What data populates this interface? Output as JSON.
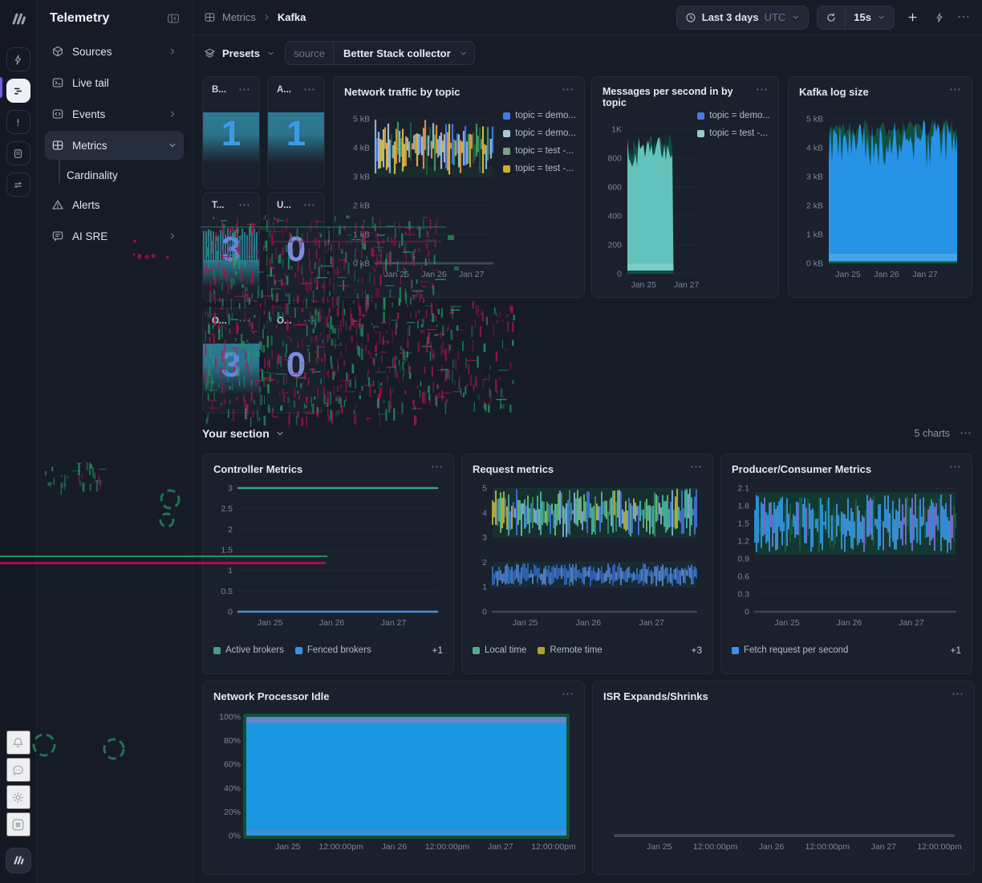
{
  "icons": {
    "more": "⋯"
  },
  "rail": {
    "top": [
      "betterstack-logo",
      "uptime",
      "telemetry",
      "incidents",
      "status-pages",
      "workflows"
    ],
    "bottom": [
      "notifications",
      "feedback",
      "theme",
      "quick-actions",
      "account"
    ]
  },
  "sidebar": {
    "title": "Telemetry",
    "items": [
      {
        "label": "Sources"
      },
      {
        "label": "Live tail"
      },
      {
        "label": "Events"
      },
      {
        "label": "Metrics"
      },
      {
        "label": "Cardinality"
      },
      {
        "label": "Alerts"
      },
      {
        "label": "AI SRE"
      }
    ]
  },
  "topbar": {
    "breadcrumb_parent": "Metrics",
    "breadcrumb_current": "Kafka",
    "time_range_label": "Last 3 days",
    "timezone_label": "UTC",
    "refresh_interval_label": "15s"
  },
  "presets": {
    "button_label": "Presets",
    "source_key": "source",
    "source_value": "Better Stack collector"
  },
  "section": {
    "title": "Your section",
    "count_label": "5 charts"
  },
  "stat_cards": [
    {
      "title": "B...",
      "value": "1",
      "spark": "block",
      "value_color": "#3e9ae8"
    },
    {
      "title": "A...",
      "value": "1",
      "spark": "block",
      "value_color": "#3e9ae8"
    },
    {
      "title": "T...",
      "value": "3",
      "spark": "bars",
      "value_color": "#5f86e0"
    },
    {
      "title": "U...",
      "value": "0",
      "spark": "none",
      "value_color": "#7d8be2"
    },
    {
      "title": "O...",
      "value": "3",
      "spark": "block",
      "value_color": "#5f86e0"
    },
    {
      "title": "O...",
      "value": "0",
      "spark": "none",
      "value_color": "#7d8be2"
    }
  ],
  "chart_data": [
    {
      "id": "network-traffic",
      "type": "area",
      "title": "Network traffic by topic",
      "ylim": [
        0,
        5
      ],
      "yticks": [
        {
          "label": "0 kB",
          "v": 0
        },
        {
          "label": "1 kB",
          "v": 1
        },
        {
          "label": "2 kB",
          "v": 2
        },
        {
          "label": "3 kB",
          "v": 3
        },
        {
          "label": "4 kB",
          "v": 4
        },
        {
          "label": "5 kB",
          "v": 5
        }
      ],
      "xticks": [
        {
          "label": "Jan 25",
          "f": 0.18
        },
        {
          "label": "Jan 26",
          "f": 0.5
        },
        {
          "label": "Jan 27",
          "f": 0.82
        }
      ],
      "legend": {
        "position": "right",
        "items": [
          {
            "label": "topic = demo...",
            "color": "#4878ea"
          },
          {
            "label": "topic = demo...",
            "color": "#a9c6da"
          },
          {
            "label": "topic = test -...",
            "color": "#7aa28b"
          },
          {
            "label": "topic = test -...",
            "color": "#d0b02c"
          }
        ]
      },
      "series": [
        {
          "kind": "bandrect",
          "lo": 3.0,
          "hi": 3.35,
          "color": "#17352b",
          "opacity": 0.6
        },
        {
          "kind": "vnoise",
          "seed": 7,
          "lo": 3.05,
          "hi": 4.98,
          "step": 2,
          "sw": 2.2,
          "colors": [
            "#e59a3a",
            "#ddc13e",
            "#e59a3a",
            "#3f9e5f",
            "#4878ea",
            "#a9c6da",
            "#1a5c44",
            "#ddc13e",
            "#e59a3a",
            "#8fb9e8"
          ]
        }
      ]
    },
    {
      "id": "messages-in",
      "type": "area",
      "title": "Messages per second in by topic",
      "ylim": [
        0,
        1000
      ],
      "yticks": [
        {
          "label": "0",
          "v": 0
        },
        {
          "label": "200",
          "v": 200
        },
        {
          "label": "400",
          "v": 400
        },
        {
          "label": "600",
          "v": 600
        },
        {
          "label": "800",
          "v": 800
        },
        {
          "label": "1K",
          "v": 1000
        }
      ],
      "xticks": [
        {
          "label": "Jan 25",
          "f": 0.22
        },
        {
          "label": "Jan 27",
          "f": 0.8
        }
      ],
      "legend": {
        "position": "right",
        "items": [
          {
            "label": "topic = demo...",
            "color": "#4878ea"
          },
          {
            "label": "topic = test -...",
            "color": "#9ec7cc"
          }
        ]
      },
      "series": [
        {
          "kind": "area",
          "seed": 3,
          "color": "#0f4f42",
          "topLo": 780,
          "topHi": 985,
          "x1": 0.625,
          "step": 2
        },
        {
          "kind": "area",
          "seed": 4,
          "color": "#64c2bc",
          "topLo": 720,
          "topHi": 950,
          "x1": 0.625,
          "step": 2
        },
        {
          "kind": "bandrect",
          "lo": 0,
          "hi": 70,
          "color": "#93d6d1",
          "opacity": 0.5,
          "x1": 0.625
        },
        {
          "kind": "bandrect",
          "lo": 0,
          "hi": 22,
          "color": "#0f4f42",
          "opacity": 1,
          "x1": 0.625
        }
      ]
    },
    {
      "id": "kafka-log-size",
      "type": "area",
      "title": "Kafka log size",
      "ylim": [
        0,
        5
      ],
      "yticks": [
        {
          "label": "0 kB",
          "v": 0
        },
        {
          "label": "1 kB",
          "v": 1
        },
        {
          "label": "2 kB",
          "v": 2
        },
        {
          "label": "3 kB",
          "v": 3
        },
        {
          "label": "4 kB",
          "v": 4
        },
        {
          "label": "5 kB",
          "v": 5
        }
      ],
      "xticks": [
        {
          "label": "Jan 25",
          "f": 0.15
        },
        {
          "label": "Jan 26",
          "f": 0.45
        },
        {
          "label": "Jan 27",
          "f": 0.75
        }
      ],
      "legend": null,
      "series": [
        {
          "kind": "area",
          "seed": 8,
          "color": "#124f3f",
          "topLo": 4.35,
          "topHi": 5.0,
          "step": 3
        },
        {
          "kind": "area",
          "seed": 9,
          "color": "#2693e6",
          "topLo": 3.25,
          "topHi": 5.0,
          "step": 2
        },
        {
          "kind": "bandrect",
          "lo": 0,
          "hi": 0.33,
          "color": "#66b6ee",
          "opacity": 0.5
        },
        {
          "kind": "bandrect",
          "lo": 0,
          "hi": 0.07,
          "color": "#0f5f3f",
          "opacity": 1
        }
      ]
    },
    {
      "id": "controller-metrics",
      "type": "line",
      "title": "Controller Metrics",
      "ylim": [
        0,
        3
      ],
      "yticks": [
        {
          "label": "0",
          "v": 0
        },
        {
          "label": "0.5",
          "v": 0.5
        },
        {
          "label": "1",
          "v": 1
        },
        {
          "label": "1.5",
          "v": 1.5
        },
        {
          "label": "2",
          "v": 2
        },
        {
          "label": "2.5",
          "v": 2.5
        },
        {
          "label": "3",
          "v": 3
        }
      ],
      "xticks": [
        {
          "label": "Jan 25",
          "f": 0.16
        },
        {
          "label": "Jan 26",
          "f": 0.47
        },
        {
          "label": "Jan 27",
          "f": 0.78
        }
      ],
      "legend": {
        "position": "bottom",
        "overflow": "+1",
        "items": [
          {
            "label": "Active brokers",
            "color": "#4d9b82"
          },
          {
            "label": "Fenced brokers",
            "color": "#3f8fe0"
          }
        ]
      },
      "series": [
        {
          "kind": "flat",
          "v": 3,
          "color": "#3fa287",
          "sw": 2.4
        },
        {
          "kind": "flat",
          "v": 0,
          "color": "#3f8fe0",
          "sw": 2.6
        }
      ]
    },
    {
      "id": "request-metrics",
      "type": "line",
      "title": "Request metrics",
      "ylim": [
        0,
        5
      ],
      "yticks": [
        {
          "label": "0",
          "v": 0
        },
        {
          "label": "1",
          "v": 1
        },
        {
          "label": "2",
          "v": 2
        },
        {
          "label": "3",
          "v": 3
        },
        {
          "label": "4",
          "v": 4
        },
        {
          "label": "5",
          "v": 5
        }
      ],
      "xticks": [
        {
          "label": "Jan 25",
          "f": 0.16
        },
        {
          "label": "Jan 26",
          "f": 0.47
        },
        {
          "label": "Jan 27",
          "f": 0.78
        }
      ],
      "legend": {
        "position": "bottom",
        "overflow": "+3",
        "items": [
          {
            "label": "Local time",
            "color": "#5aa88f"
          },
          {
            "label": "Remote time",
            "color": "#b89f2c"
          }
        ]
      },
      "series": [
        {
          "kind": "bandrect",
          "lo": 3.0,
          "hi": 5.0,
          "color": "#123f33",
          "opacity": 0.5
        },
        {
          "kind": "vnoise",
          "seed": 11,
          "lo": 3.02,
          "hi": 4.98,
          "step": 2,
          "sw": 1.8,
          "colors": [
            "#4fc2a8",
            "#4878ea",
            "#6fcf7f",
            "#8fb9e8",
            "#cdc23c",
            "#4fc2a8",
            "#4878ea",
            "#35996b"
          ]
        },
        {
          "kind": "bandrect",
          "lo": 1.0,
          "hi": 2.0,
          "color": "#10333c",
          "opacity": 0.5
        },
        {
          "kind": "vnoise",
          "seed": 12,
          "lo": 1.03,
          "hi": 1.97,
          "step": 2,
          "sw": 1.6,
          "colors": [
            "#3a6fd8",
            "#5a8ae8",
            "#2f7bd8",
            "#6d9ae8"
          ]
        }
      ]
    },
    {
      "id": "producer-consumer",
      "type": "line",
      "title": "Producer/Consumer Metrics",
      "ylim": [
        0,
        2.1
      ],
      "yticks": [
        {
          "label": "0",
          "v": 0
        },
        {
          "label": "0.3",
          "v": 0.3
        },
        {
          "label": "0.6",
          "v": 0.6
        },
        {
          "label": "0.9",
          "v": 0.9
        },
        {
          "label": "1.2",
          "v": 1.2
        },
        {
          "label": "1.5",
          "v": 1.5
        },
        {
          "label": "1.8",
          "v": 1.8
        },
        {
          "label": "2.1",
          "v": 2.1
        }
      ],
      "xticks": [
        {
          "label": "Jan 25",
          "f": 0.16
        },
        {
          "label": "Jan 26",
          "f": 0.47
        },
        {
          "label": "Jan 27",
          "f": 0.78
        }
      ],
      "legend": {
        "position": "bottom",
        "overflow": "+1",
        "items": [
          {
            "label": "Fetch request per second",
            "color": "#3f8fe0"
          }
        ]
      },
      "series": [
        {
          "kind": "bandrect",
          "lo": 0.97,
          "hi": 2.03,
          "color": "#123f33",
          "opacity": 0.8
        },
        {
          "kind": "vnoise",
          "seed": 13,
          "lo": 1.0,
          "hi": 2.0,
          "step": 2,
          "sw": 1.9,
          "colors": [
            "#2f9be8",
            "#4596e6",
            "#7b74d8",
            "#2f9be8",
            "#1a5c44",
            "#4596e6"
          ]
        }
      ]
    },
    {
      "id": "network-processor-idle",
      "type": "area",
      "title": "Network Processor Idle",
      "ylim": [
        0,
        100
      ],
      "yticks": [
        {
          "label": "0%",
          "v": 0
        },
        {
          "label": "20%",
          "v": 20
        },
        {
          "label": "40%",
          "v": 40
        },
        {
          "label": "60%",
          "v": 60
        },
        {
          "label": "80%",
          "v": 80
        },
        {
          "label": "100%",
          "v": 100
        }
      ],
      "xticks": [
        {
          "label": "Jan 25",
          "f": 0.13
        },
        {
          "label": "12:00:00pm",
          "f": 0.296
        },
        {
          "label": "Jan 26",
          "f": 0.462
        },
        {
          "label": "12:00:00pm",
          "f": 0.628
        },
        {
          "label": "Jan 27",
          "f": 0.794
        },
        {
          "label": "12:00:00pm",
          "f": 0.96
        }
      ],
      "legend": null,
      "series": [
        {
          "kind": "fullfill",
          "color": "#1a97e0",
          "border": "#124f35",
          "strip": "#6d83c8"
        }
      ]
    },
    {
      "id": "isr-expands",
      "type": "line",
      "title": "ISR Expands/Shrinks",
      "ylim": [
        0,
        1
      ],
      "yticks": [],
      "xticks": [
        {
          "label": "Jan 25",
          "f": 0.13
        },
        {
          "label": "12:00:00pm",
          "f": 0.296
        },
        {
          "label": "Jan 26",
          "f": 0.462
        },
        {
          "label": "12:00:00pm",
          "f": 0.628
        },
        {
          "label": "Jan 27",
          "f": 0.794
        },
        {
          "label": "12:00:00pm",
          "f": 0.96
        }
      ],
      "legend": null,
      "series": []
    }
  ]
}
